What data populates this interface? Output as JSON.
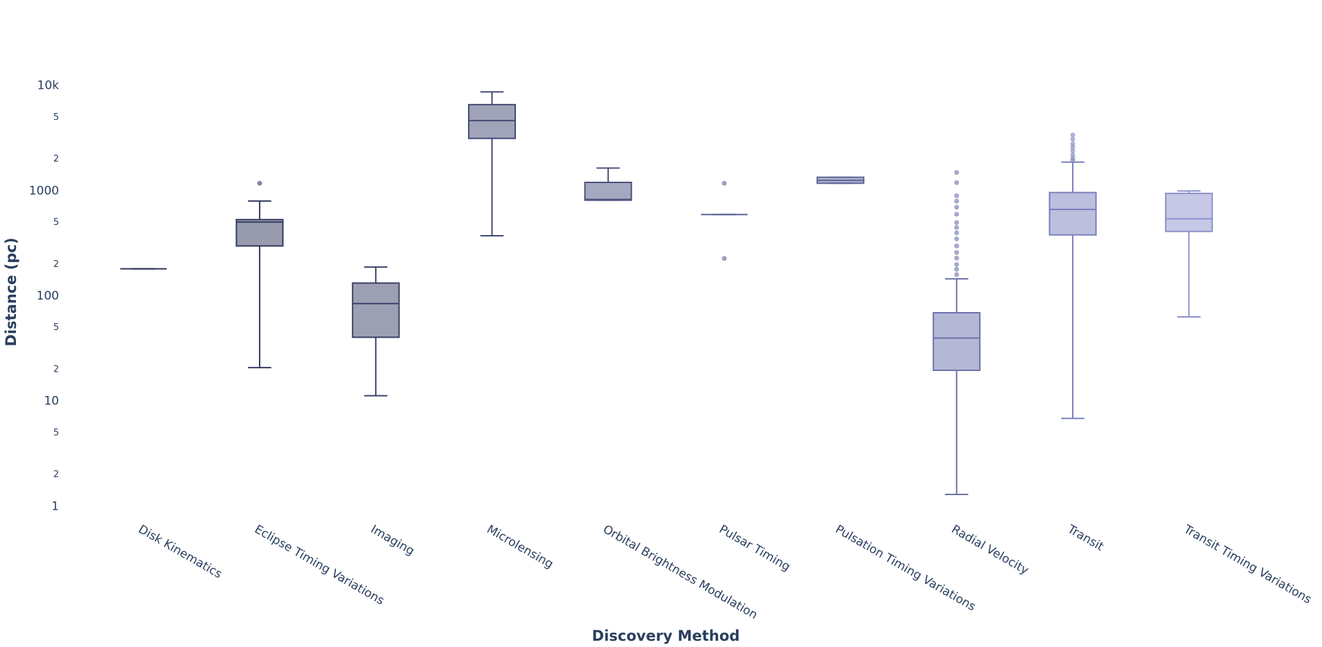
{
  "chart_data": {
    "type": "box",
    "x_label": "Discovery Method",
    "y_label": "Distance (pc)",
    "y_log": true,
    "grid": false,
    "ylim": [
      0.8,
      15000
    ],
    "yticks": [
      1,
      {
        "value": 2,
        "label": "2"
      },
      {
        "value": 5,
        "label": "5"
      },
      10,
      {
        "value": 20,
        "label": "2"
      },
      {
        "value": 50,
        "label": "5"
      },
      100,
      {
        "value": 200,
        "label": "2"
      },
      {
        "value": 500,
        "label": "5"
      },
      1000,
      {
        "value": 2000,
        "label": "2"
      },
      {
        "value": 5000,
        "label": "5"
      },
      {
        "value": 10000,
        "label": "10k"
      }
    ],
    "categories": [
      "Disk Kinematics",
      "Eclipse Timing Variations",
      "Imaging",
      "Microlensing",
      "Orbital Brightness Modulation",
      "Pulsar Timing",
      "Pulsation Timing Variations",
      "Radial Velocity",
      "Transit",
      "Transit Timing Variations"
    ],
    "boxes": [
      {
        "color": "#2f3656",
        "lower": 182,
        "q1": 182,
        "median": 182,
        "q3": 182,
        "upper": 182,
        "outliers": []
      },
      {
        "color": "#343a5e",
        "lower": 20.9,
        "q1": 300,
        "median": 506,
        "q3": 534,
        "upper": 802,
        "outliers": [
          1183
        ]
      },
      {
        "color": "#3b4268",
        "lower": 11.3,
        "q1": 40.6,
        "median": 85,
        "q3": 133,
        "upper": 189,
        "outliers": []
      },
      {
        "color": "#434a74",
        "lower": 375,
        "q1": 3160,
        "median": 4670,
        "q3": 6620,
        "upper": 8750,
        "outliers": []
      },
      {
        "color": "#4b527e",
        "lower": 817,
        "q1": 817,
        "median": 830,
        "q3": 1206,
        "upper": 1650,
        "outliers": []
      },
      {
        "color": "#5a6290",
        "lower": 597,
        "q1": 597,
        "median": 597,
        "q3": 597,
        "upper": 597,
        "outliers": [
          1183,
          228
        ]
      },
      {
        "color": "#5e6698",
        "lower": 1183,
        "q1": 1183,
        "median": 1260,
        "q3": 1350,
        "upper": 1350,
        "outliers": []
      },
      {
        "color": "#6b72aa",
        "lower": 1.3,
        "q1": 19.7,
        "median": 39.9,
        "q3": 69.5,
        "upper": 146,
        "outliers": [
          160,
          180,
          200,
          230,
          260,
          300,
          350,
          400,
          450,
          500,
          600,
          700,
          800,
          900,
          1200,
          1500
        ]
      },
      {
        "color": "#7a80bc",
        "lower": 6.87,
        "q1": 382,
        "median": 667,
        "q3": 966,
        "upper": 1880,
        "outliers": [
          1950,
          2050,
          2200,
          2400,
          2600,
          2800,
          3100,
          3400
        ]
      },
      {
        "color": "#8d91cc",
        "lower": 63.4,
        "q1": 412,
        "median": 544,
        "q3": 948,
        "upper": 1000,
        "outliers": []
      }
    ]
  }
}
